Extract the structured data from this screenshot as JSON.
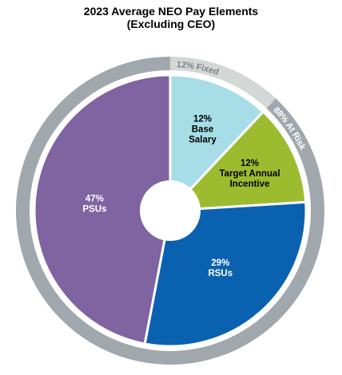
{
  "chart_data": {
    "type": "pie",
    "title_line1": "2023 Average NEO Pay Elements",
    "title_line2": "(Excluding CEO)",
    "slices": [
      {
        "key": "base",
        "value": 12,
        "lines": [
          "12%",
          "Base",
          "Salary"
        ],
        "color": "#a6dde6",
        "text_color": "#000000"
      },
      {
        "key": "target-annual-incentive",
        "value": 12,
        "lines": [
          "12%",
          "Target Annual",
          "Incentive"
        ],
        "color": "#9dbb2f",
        "text_color": "#000000"
      },
      {
        "key": "rsus",
        "value": 29,
        "lines": [
          "29%",
          "RSUs"
        ],
        "color": "#0a61b0",
        "text_color": "#ffffff"
      },
      {
        "key": "psus",
        "value": 47,
        "lines": [
          "47%",
          "PSUs"
        ],
        "color": "#8063a1",
        "text_color": "#ffffff"
      }
    ],
    "outer_ring": [
      {
        "key": "fixed",
        "value": 12,
        "label": "12% Fixed",
        "color": "#d3d7d6",
        "text_color": "#7f8386"
      },
      {
        "key": "at-risk",
        "value": 88,
        "label": "88% At Risk",
        "color": "#a1a8ad",
        "text_color": "#ffffff"
      }
    ]
  }
}
